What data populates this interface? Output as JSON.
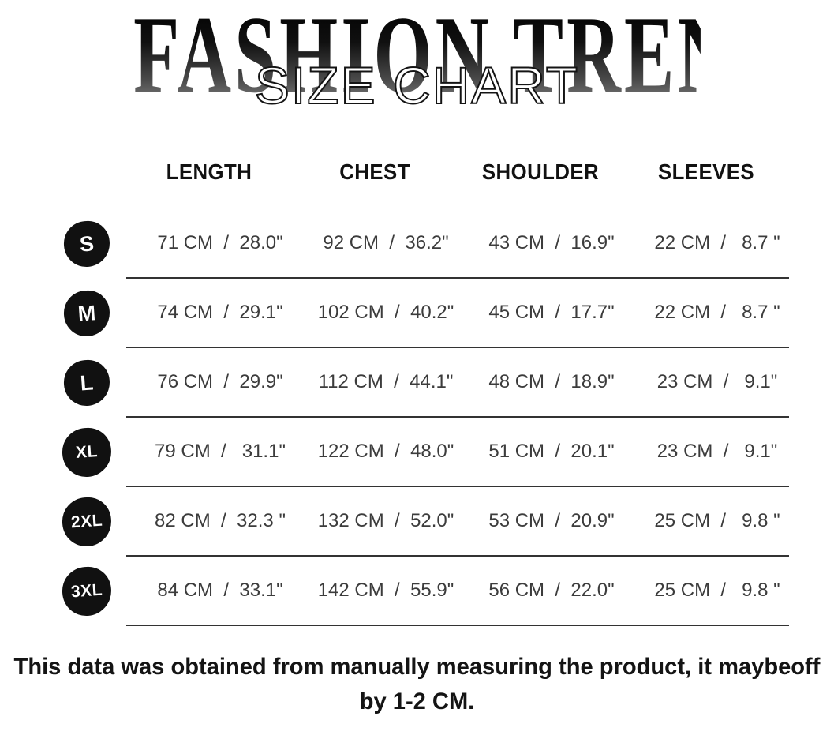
{
  "title": {
    "brand": "FASHION TRENDS",
    "overlay": "SIZE CHART"
  },
  "table": {
    "columns": [
      "LENGTH",
      "CHEST",
      "SHOULDER",
      "SLEEVES"
    ],
    "rows": [
      {
        "size": "S",
        "values": [
          "71 CM  /  28.0\"",
          "92 CM  /  36.2\"",
          "43 CM  /  16.9\"",
          "22 CM  /   8.7 \""
        ]
      },
      {
        "size": "M",
        "values": [
          "74 CM  /  29.1\"",
          "102 CM  /  40.2\"",
          "45 CM  /  17.7\"",
          "22 CM  /   8.7 \""
        ]
      },
      {
        "size": "L",
        "values": [
          "76 CM  /  29.9\"",
          "112 CM  /  44.1\"",
          "48 CM  /  18.9\"",
          "23 CM  /   9.1\""
        ]
      },
      {
        "size": "XL",
        "values": [
          "79 CM  /   31.1\"",
          "122 CM  /  48.0\"",
          "51 CM  /  20.1\"",
          "23 CM  /   9.1\""
        ]
      },
      {
        "size": "2XL",
        "values": [
          "82 CM  /  32.3 \"",
          "132 CM  /  52.0\"",
          "53 CM  /  20.9\"",
          "25 CM  /   9.8 \""
        ]
      },
      {
        "size": "3XL",
        "values": [
          "84 CM  /  33.1\"",
          "142 CM  /  55.9\"",
          "56 CM  /  22.0\"",
          "25 CM  /   9.8 \""
        ]
      }
    ]
  },
  "footer": {
    "lines": [
      "This data was obtained from manually measuring the product, it maybeoff",
      "by 1-2 CM."
    ]
  },
  "colors": {
    "badge_background": "#111111",
    "badge_text": "#ffffff",
    "header_text": "#111111",
    "value_text": "#3c3c3c",
    "divider": "#333333",
    "title_gradient_top": "#000000",
    "title_gradient_bottom": "#8a8a8a"
  }
}
